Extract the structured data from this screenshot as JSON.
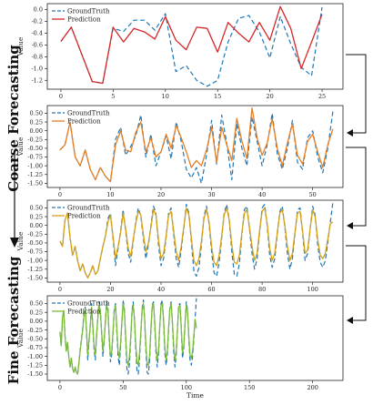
{
  "side_labels": {
    "top": "Coarse Forecasting",
    "bottom": "Fine Forecasting"
  },
  "colors": {
    "groundtruth": "#1f77b4",
    "gt_dash": "5,3",
    "arrow": "#111111"
  },
  "chart_data": [
    {
      "type": "line",
      "ylabel": "Value",
      "xlabel": "",
      "xlim": [
        -1.3,
        27
      ],
      "ylim": [
        -1.35,
        0.1
      ],
      "xticks": [
        0,
        5,
        10,
        15,
        20,
        25
      ],
      "yticks": [
        0.0,
        -0.2,
        -0.4,
        -0.6,
        -0.8,
        -1.0,
        -1.2
      ],
      "ytick_labels": [
        "0.0",
        "-0.2",
        "-0.4",
        "-0.6",
        "-0.8",
        "-1.0",
        "-1.2"
      ],
      "legend": "top-left",
      "series": [
        {
          "name": "GroundTruth",
          "color": "#1f77b4",
          "dashed": true,
          "values": [
            -0.54,
            -0.3,
            -0.76,
            -1.22,
            -1.25,
            -0.32,
            -0.37,
            -0.18,
            -0.18,
            -0.35,
            -0.07,
            -1.05,
            -0.95,
            -1.2,
            -1.3,
            -1.2,
            -0.55,
            -0.15,
            -0.1,
            -0.38,
            -0.82,
            -0.12,
            -0.58,
            -0.98,
            -1.12,
            0.04
          ]
        },
        {
          "name": "Prediction",
          "color": "#d62728",
          "dashed": false,
          "values": [
            -0.54,
            -0.3,
            -0.76,
            -1.22,
            -1.25,
            -0.3,
            -0.55,
            -0.32,
            -0.38,
            -0.5,
            -0.12,
            -0.52,
            -0.68,
            -0.3,
            -0.32,
            -0.72,
            -0.22,
            -0.4,
            -0.55,
            -0.22,
            -0.52,
            0.05,
            -0.32,
            -1.0,
            -0.55,
            -0.08
          ]
        }
      ]
    },
    {
      "type": "line",
      "ylabel": "Value",
      "xlabel": "",
      "xlim": [
        -2.5,
        56
      ],
      "ylim": [
        -1.62,
        0.72
      ],
      "xticks": [
        0,
        10,
        20,
        30,
        40,
        50
      ],
      "yticks": [
        0.5,
        0.25,
        0.0,
        -0.25,
        -0.5,
        -0.75,
        -1.0,
        -1.25,
        -1.5
      ],
      "ytick_labels": [
        "0.50",
        "0.25",
        "0.00",
        "-0.25",
        "-0.50",
        "-0.75",
        "-1.00",
        "-1.25",
        "-1.50"
      ],
      "legend": "top-left",
      "series": [
        {
          "name": "GroundTruth",
          "color": "#1f77b4",
          "dashed": true,
          "values": [
            -0.55,
            -0.4,
            0.25,
            -0.75,
            -1.0,
            -0.55,
            -1.1,
            -1.4,
            -1.05,
            -1.3,
            -1.45,
            -0.25,
            0.1,
            -0.7,
            -0.45,
            -0.15,
            0.45,
            -0.75,
            -0.1,
            -1.0,
            -0.6,
            -0.15,
            -0.8,
            0.25,
            -0.3,
            -1.1,
            -1.35,
            -1.05,
            -1.5,
            -0.7,
            0.3,
            -0.95,
            0.45,
            -0.35,
            -1.4,
            0.2,
            -0.5,
            -1.0,
            0.4,
            -0.3,
            -1.0,
            -0.4,
            0.5,
            -0.65,
            -1.1,
            -0.5,
            0.3,
            -0.9,
            -1.1,
            -0.2,
            0.0,
            -0.75,
            -1.2,
            -0.5,
            0.55
          ]
        },
        {
          "name": "Prediction",
          "color": "#e67e22",
          "dashed": false,
          "values": [
            -0.55,
            -0.4,
            0.25,
            -0.75,
            -1.0,
            -0.55,
            -1.1,
            -1.4,
            -1.05,
            -1.3,
            -1.45,
            -0.4,
            0.0,
            -0.55,
            -0.6,
            -0.05,
            0.25,
            -0.6,
            -0.2,
            -0.75,
            -0.6,
            -0.1,
            -0.5,
            0.15,
            -0.2,
            -0.6,
            -1.05,
            -0.85,
            -1.0,
            -0.55,
            0.1,
            -0.9,
            0.1,
            -0.4,
            -0.85,
            0.35,
            -0.3,
            -0.8,
            0.65,
            -0.2,
            -0.7,
            -0.35,
            0.35,
            -0.5,
            -1.0,
            -0.35,
            0.2,
            -0.7,
            -0.95,
            -0.3,
            -0.1,
            -0.6,
            -1.05,
            -0.4,
            0.05
          ]
        }
      ]
    },
    {
      "type": "line",
      "ylabel": "Value",
      "xlabel": "",
      "xlim": [
        -5,
        112
      ],
      "ylim": [
        -1.62,
        0.72
      ],
      "xticks": [
        0,
        20,
        40,
        60,
        80,
        100
      ],
      "yticks": [
        0.5,
        0.25,
        0.0,
        -0.25,
        -0.5,
        -0.75,
        -1.0,
        -1.25,
        -1.5
      ],
      "ytick_labels": [
        "0.50",
        "0.25",
        "0.00",
        "-0.25",
        "-0.50",
        "-0.75",
        "-1.00",
        "-1.25",
        "-1.50"
      ],
      "legend": "top-left",
      "series": [
        {
          "name": "GroundTruth",
          "color": "#1f77b4",
          "dashed": true,
          "values": [
            -0.45,
            -0.6,
            0.15,
            0.35,
            -0.35,
            -0.85,
            -0.6,
            -1.0,
            -1.3,
            -1.1,
            -1.35,
            -1.5,
            -1.35,
            -1.15,
            -1.4,
            -1.3,
            -0.95,
            -0.6,
            -0.3,
            0.2,
            0.35,
            -0.35,
            -1.15,
            -0.65,
            -0.15,
            0.45,
            -0.15,
            -0.8,
            -1.05,
            -0.45,
            0.1,
            0.5,
            0.25,
            -0.35,
            -0.95,
            -0.55,
            0.0,
            0.55,
            0.35,
            -0.55,
            -1.15,
            -0.95,
            -0.35,
            0.35,
            0.5,
            -0.25,
            -0.95,
            -1.2,
            -0.7,
            -0.1,
            0.6,
            0.35,
            -0.45,
            -1.3,
            -1.45,
            -1.2,
            -0.55,
            0.25,
            0.55,
            0.05,
            -0.75,
            -1.35,
            -1.45,
            -1.05,
            -0.35,
            0.35,
            0.6,
            0.15,
            -0.75,
            -1.4,
            -1.45,
            -1.1,
            -0.25,
            0.45,
            0.55,
            -0.1,
            -0.8,
            -1.25,
            -0.95,
            -0.2,
            0.5,
            0.6,
            0.0,
            -0.85,
            -1.2,
            -0.95,
            -0.25,
            0.4,
            0.55,
            -0.05,
            -0.8,
            -1.25,
            -0.95,
            -0.25,
            0.45,
            0.5,
            -0.2,
            -1.0,
            -0.8,
            -0.1,
            0.55,
            0.3,
            -0.55,
            -1.05,
            -1.2,
            -1.0,
            -0.5,
            0.1,
            0.65
          ]
        },
        {
          "name": "Prediction",
          "color": "#d4a017",
          "dashed": false,
          "values": [
            -0.45,
            -0.6,
            0.15,
            0.35,
            -0.35,
            -0.85,
            -0.6,
            -1.0,
            -1.3,
            -1.1,
            -1.35,
            -1.5,
            -1.35,
            -1.15,
            -1.4,
            -1.3,
            -0.95,
            -0.6,
            -0.3,
            0.1,
            0.3,
            -0.3,
            -0.95,
            -0.6,
            -0.2,
            0.35,
            -0.1,
            -0.65,
            -0.9,
            -0.4,
            0.05,
            0.4,
            0.3,
            -0.25,
            -0.75,
            -0.5,
            -0.05,
            0.45,
            0.3,
            -0.4,
            -0.95,
            -0.8,
            -0.3,
            0.3,
            0.4,
            -0.15,
            -0.75,
            -1.0,
            -0.6,
            -0.05,
            0.5,
            0.3,
            -0.35,
            -1.0,
            -1.15,
            -0.95,
            -0.45,
            0.2,
            0.45,
            0.1,
            -0.6,
            -1.05,
            -1.15,
            -0.85,
            -0.3,
            0.3,
            0.5,
            0.15,
            -0.55,
            -1.05,
            -1.1,
            -0.85,
            -0.2,
            0.35,
            0.45,
            -0.05,
            -0.6,
            -1.0,
            -0.8,
            -0.15,
            0.4,
            0.5,
            0.05,
            -0.65,
            -1.0,
            -0.8,
            -0.2,
            0.35,
            0.45,
            0.0,
            -0.6,
            -1.0,
            -0.8,
            -0.2,
            0.35,
            0.4,
            -0.15,
            -0.8,
            -0.7,
            -0.1,
            0.45,
            0.25,
            -0.4,
            -0.85,
            -0.95,
            -0.8,
            -0.4,
            0.05,
            0.1
          ]
        }
      ]
    },
    {
      "type": "line",
      "ylabel": "Value",
      "xlabel": "Time",
      "xlim": [
        -10,
        224
      ],
      "ylim": [
        -1.68,
        0.72
      ],
      "xticks": [
        0,
        50,
        100,
        150,
        200
      ],
      "yticks": [
        0.5,
        0.25,
        0.0,
        -0.25,
        -0.5,
        -0.75,
        -1.0,
        -1.25,
        -1.5
      ],
      "ytick_labels": [
        "0.50",
        "0.25",
        "0.00",
        "-0.25",
        "-0.50",
        "-0.75",
        "-1.00",
        "-1.25",
        "-1.50"
      ],
      "legend": "top-left",
      "series": [
        {
          "name": "GroundTruth",
          "color": "#1f77b4",
          "dashed": true,
          "values": [
            -0.3,
            -0.7,
            0.1,
            0.3,
            -0.4,
            -0.85,
            -0.6,
            -1.0,
            -1.3,
            -1.05,
            -1.35,
            -1.45,
            -1.3,
            -1.45,
            -1.5,
            -1.2,
            -0.8,
            -0.5,
            -0.2,
            0.25,
            0.4,
            -0.3,
            -1.1,
            -0.6,
            -0.1,
            0.5,
            -0.15,
            -0.8,
            -1.1,
            -0.4,
            0.15,
            0.55,
            0.3,
            -0.35,
            -1.0,
            -0.55,
            0.05,
            0.55,
            0.35,
            -0.55,
            -1.15,
            -0.95,
            -0.35,
            0.35,
            0.5,
            -0.3,
            -1.0,
            -1.25,
            -0.7,
            -0.05,
            0.6,
            0.35,
            -0.5,
            -1.35,
            -1.5,
            -1.2,
            -0.55,
            0.3,
            0.55,
            0.05,
            -0.8,
            -1.4,
            -1.5,
            -1.05,
            -0.35,
            0.35,
            0.6,
            0.1,
            -0.8,
            -1.45,
            -1.5,
            -1.1,
            -0.25,
            0.45,
            0.55,
            -0.1,
            -0.85,
            -1.3,
            -0.95,
            -0.2,
            0.5,
            0.6,
            0.0,
            -0.9,
            -1.25,
            -0.95,
            -0.25,
            0.4,
            0.55,
            -0.05,
            -0.85,
            -1.3,
            -0.95,
            -0.25,
            0.45,
            0.5,
            -0.2,
            -1.05,
            -0.8,
            -0.1,
            0.55,
            0.3,
            -0.55,
            -1.1,
            -1.25,
            -1.0,
            -0.5,
            0.1,
            0.65
          ]
        },
        {
          "name": "Prediction",
          "color": "#7cbb3a",
          "dashed": false,
          "values": [
            -0.3,
            -0.7,
            0.1,
            0.3,
            -0.4,
            -0.85,
            -0.6,
            -1.0,
            -1.3,
            -1.05,
            -1.35,
            -1.45,
            -1.3,
            -1.45,
            -1.5,
            -1.2,
            -0.85,
            -0.55,
            -0.25,
            0.15,
            0.35,
            -0.25,
            -0.95,
            -0.55,
            -0.15,
            0.4,
            -0.1,
            -0.7,
            -0.95,
            -0.35,
            0.1,
            0.45,
            0.3,
            -0.3,
            -0.85,
            -0.5,
            0.0,
            0.45,
            0.3,
            -0.45,
            -1.0,
            -0.85,
            -0.3,
            0.3,
            0.45,
            -0.2,
            -0.85,
            -1.05,
            -0.6,
            -0.05,
            0.5,
            0.3,
            -0.4,
            -1.1,
            -1.25,
            -1.0,
            -0.45,
            0.25,
            0.45,
            0.05,
            -0.65,
            -1.15,
            -1.25,
            -0.9,
            -0.3,
            0.3,
            0.5,
            0.1,
            -0.65,
            -1.2,
            -1.25,
            -0.95,
            -0.2,
            0.4,
            0.5,
            -0.05,
            -0.7,
            -1.1,
            -0.85,
            -0.15,
            0.45,
            0.5,
            0.05,
            -0.75,
            -1.1,
            -0.85,
            -0.2,
            0.35,
            0.5,
            0.0,
            -0.7,
            -1.1,
            -0.85,
            -0.2,
            0.4,
            0.45,
            -0.15,
            -0.9,
            -0.7,
            -0.05,
            0.45,
            0.25,
            -0.45,
            -0.95,
            -1.05,
            -0.85,
            -0.4,
            0.05,
            -0.2
          ]
        }
      ]
    }
  ]
}
